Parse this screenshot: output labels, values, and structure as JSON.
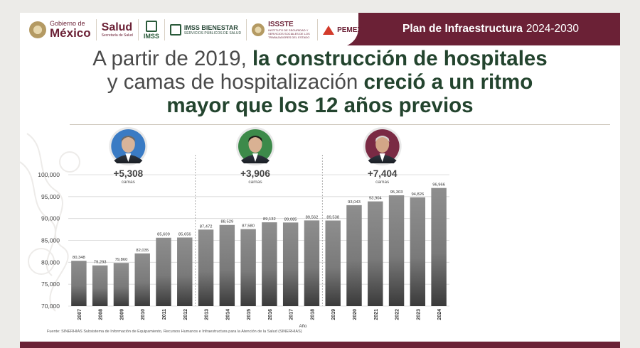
{
  "header": {
    "logos": {
      "gobierno_small": "Gobierno de",
      "gobierno_big": "México",
      "salud": "Salud",
      "salud_sub": "Secretaría de Salud",
      "imss": "IMSS",
      "bienestar": "IMSS BIENESTAR",
      "bienestar_sub": "SERVICIOS PÚBLICOS DE SALUD",
      "issste": "ISSSTE",
      "issste_sub": "INSTITUTO DE SEGURIDAD Y SERVICIOS SOCIALES DE LOS TRABAJADORES DEL ESTADO",
      "pemex": "PEMEX"
    },
    "plan_bold": "Plan de Infraestructura",
    "plan_years": "2024-2030",
    "band_color": "#6b2136"
  },
  "headline": {
    "line1_plain": "A partir de 2019,",
    "line1_bold": "la construcción de hospitales",
    "line2_plain": "y camas de hospitalización",
    "line2_bold": "creció a un ritmo",
    "line3_bold": "mayor que los 12 años previos",
    "bold_color": "#23442e"
  },
  "periods": [
    {
      "delta": "+5,308",
      "unit": "camas"
    },
    {
      "delta": "+3,906",
      "unit": "camas"
    },
    {
      "delta": "+7,404",
      "unit": "camas"
    }
  ],
  "chart_data": {
    "type": "bar",
    "categories": [
      "2007",
      "2008",
      "2009",
      "2010",
      "2011",
      "2012",
      "2013",
      "2014",
      "2015",
      "2016",
      "2017",
      "2018",
      "2019",
      "2020",
      "2021",
      "2022",
      "2023",
      "2024"
    ],
    "values": [
      80348,
      79293,
      79860,
      82035,
      85609,
      85656,
      87472,
      88529,
      87580,
      89132,
      89085,
      89562,
      89538,
      93043,
      93904,
      95303,
      94826,
      96966
    ],
    "value_labels": [
      "80,348",
      "79,293",
      "79,860",
      "82,035",
      "85,609",
      "85,656",
      "87,472",
      "88,529",
      "87,580",
      "89,132",
      "89,085",
      "89,562",
      "89,538",
      "93,043",
      "93,904",
      "95,303",
      "94,826",
      "96,966"
    ],
    "y_ticks": [
      "70,000",
      "75,000",
      "80,000",
      "85,000",
      "90,000",
      "95,000",
      "100,000"
    ],
    "ylim": [
      70000,
      100000
    ],
    "xlabel": "Año",
    "ylabel": "",
    "grid": true,
    "period_dividers_after": [
      "2012",
      "2018"
    ],
    "bar_color": "#8a8a8a"
  },
  "source": "Fuente: SINERHIAS Subsistema de Información de Equipamiento, Recursos Humanos e Infraestructura para la Atención de la Salud (SINERHIAS)"
}
